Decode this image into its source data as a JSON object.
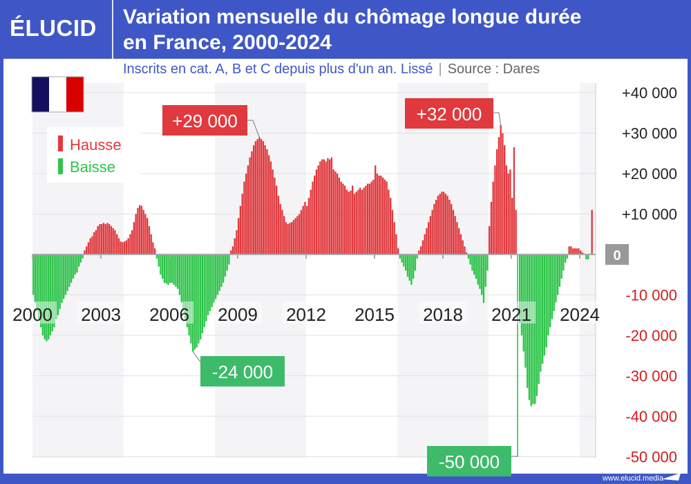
{
  "header": {
    "logo": "ÉLUCID",
    "title_line1": "Variation mensuelle du chômage longue durée",
    "title_line2": "en France, 2000-2024",
    "subtitle": "Inscrits en cat. A, B et C depuis plus d'un an. Lissé",
    "source": "Source : Dares"
  },
  "footer": {
    "website": "www.elucid.media"
  },
  "colors": {
    "brand": "#3f57c6",
    "hausse": "#e0393e",
    "baisse": "#2ec44a",
    "label_green": "#3dbb6a"
  },
  "legend": {
    "items": [
      {
        "label": "Hausse",
        "color": "#e0393e"
      },
      {
        "label": "Baisse",
        "color": "#2ec44a"
      }
    ],
    "placement": "top-left"
  },
  "chart_data": {
    "type": "bar",
    "title": "Variation mensuelle du chômage longue durée en France, 2000-2024",
    "xlabel": "",
    "ylabel": "",
    "start": "2000-01",
    "frequency": "monthly",
    "ylim": [
      -50000,
      40000
    ],
    "yticks": [
      {
        "value": 40000,
        "label": "+40 000"
      },
      {
        "value": 30000,
        "label": "+30 000"
      },
      {
        "value": 20000,
        "label": "+20 000"
      },
      {
        "value": 10000,
        "label": "+10 000"
      },
      {
        "value": 0,
        "label": "0"
      },
      {
        "value": -10000,
        "label": "-10 000"
      },
      {
        "value": -20000,
        "label": "-20 000"
      },
      {
        "value": -30000,
        "label": "-30 000"
      },
      {
        "value": -40000,
        "label": "-40 000"
      },
      {
        "value": -50000,
        "label": "-50 000"
      }
    ],
    "xticks": [
      "2000",
      "2003",
      "2006",
      "2009",
      "2012",
      "2015",
      "2018",
      "2021",
      "2024"
    ],
    "grid": true,
    "values_by_year_thousands": {
      "2000": [
        -10,
        -12,
        -14,
        -16,
        -18,
        -20,
        -21,
        -21.5,
        -21,
        -20,
        -19,
        -18
      ],
      "2001": [
        -16,
        -15,
        -13.5,
        -12,
        -11,
        -10,
        -9,
        -8,
        -7,
        -6,
        -5,
        -4.5
      ],
      "2002": [
        -3,
        -2,
        -1,
        1,
        2,
        3,
        4,
        4.5,
        5.5,
        6,
        7,
        7.5
      ],
      "2003": [
        7.5,
        7.8,
        7.5,
        7.8,
        7.5,
        7,
        6.5,
        6,
        5,
        4,
        3.2,
        3
      ],
      "2004": [
        3.2,
        3.5,
        4,
        5,
        6,
        8,
        10,
        11.5,
        12.2,
        12,
        11,
        10
      ],
      "2005": [
        9,
        7,
        5,
        3,
        1.5,
        -1,
        -3,
        -5,
        -6,
        -7,
        -7.2,
        -7.5
      ],
      "2006": [
        -7,
        -7,
        -7.5,
        -8,
        -8.5,
        -10,
        -12,
        -14,
        -16,
        -18,
        -20,
        -22
      ],
      "2007": [
        -24,
        -23.5,
        -23,
        -22,
        -21,
        -19.5,
        -18,
        -16.5,
        -15,
        -14,
        -13,
        -12
      ],
      "2008": [
        -11,
        -10,
        -9,
        -8,
        -7,
        -5.5,
        -4,
        -2.5,
        1,
        2,
        4,
        6
      ],
      "2009": [
        9,
        12,
        15,
        18,
        20,
        22,
        24,
        25.5,
        27,
        28,
        28.5,
        29
      ],
      "2010": [
        28.5,
        28,
        27,
        26,
        24.5,
        23,
        21,
        19,
        17,
        14.5,
        12.5,
        11
      ],
      "2011": [
        9.5,
        8,
        7.5,
        7.8,
        8,
        8.5,
        9,
        9.5,
        10,
        11,
        12,
        13
      ],
      "2012": [
        12,
        14,
        16,
        18,
        19.5,
        21,
        22,
        23,
        23.5,
        23.5,
        23,
        23.8
      ],
      "2013": [
        23.5,
        24,
        21,
        20.5,
        20,
        19,
        18,
        17.5,
        17,
        16,
        15.5,
        15.8
      ],
      "2014": [
        17,
        15,
        15.5,
        16,
        16.5,
        16,
        16.5,
        17,
        17.5,
        17.5,
        18,
        18.5
      ],
      "2015": [
        22,
        20,
        19.5,
        19.5,
        19,
        18.5,
        18,
        16,
        14,
        11,
        8,
        5
      ],
      "2016": [
        1.5,
        -1,
        -2,
        -3,
        -4,
        -5.5,
        -6.5,
        -7.5,
        -6,
        -4,
        -1,
        1
      ],
      "2017": [
        2,
        3.5,
        5,
        6.5,
        8,
        9.5,
        11,
        12.5,
        13.5,
        14.5,
        15,
        15.5
      ],
      "2018": [
        15.5,
        15,
        14.5,
        13.5,
        12.5,
        11,
        9.5,
        8,
        6.5,
        5,
        3.5,
        2
      ],
      "2019": [
        0.5,
        -1,
        -2.5,
        -4,
        -5,
        -6,
        -7.5,
        -8.5,
        -10,
        -12,
        -8,
        -4
      ],
      "2020": [
        7,
        13,
        18,
        22,
        26,
        29,
        32,
        30,
        27,
        22,
        20,
        21
      ],
      "2021": [
        14,
        26.5,
        11,
        -50,
        -17,
        -20,
        -24,
        -28,
        -33,
        -36,
        -37.5,
        -37
      ],
      "2022": [
        -37,
        -35,
        -32,
        -29,
        -27,
        -25,
        -23,
        -20,
        -18,
        -16,
        -14,
        -12
      ],
      "2023": [
        -10,
        -8,
        -6,
        -4,
        -2,
        -1,
        2,
        2,
        1.5,
        1.5,
        1.5,
        1.5
      ],
      "2024": [
        1,
        0.5,
        0.2,
        -1.2,
        -1.2,
        0.2,
        11
      ]
    },
    "annotations": [
      {
        "label": "+29 000",
        "date": "2009-12",
        "value": 29000,
        "type": "hausse"
      },
      {
        "label": "-24 000",
        "date": "2007-01",
        "value": -24000,
        "type": "baisse"
      },
      {
        "label": "+32 000",
        "date": "2020-07",
        "value": 32000,
        "type": "hausse"
      },
      {
        "label": "-50 000",
        "date": "2021-04",
        "value": -50000,
        "type": "baisse"
      }
    ]
  }
}
